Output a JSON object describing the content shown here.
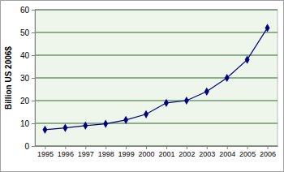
{
  "chart_data": {
    "type": "line",
    "y_label": "Billion US 2006$",
    "categories": [
      "1995",
      "1996",
      "1997",
      "1998",
      "1999",
      "2000",
      "2001",
      "2002",
      "2003",
      "2004",
      "2005",
      "2006"
    ],
    "values": [
      7.2,
      8,
      9,
      9.8,
      11.5,
      14,
      19,
      20,
      24,
      30,
      38,
      52
    ],
    "color": "#000080",
    "marker": "diamond",
    "line_style": "solid",
    "ylim": [
      0,
      60
    ],
    "yticks": [
      0,
      10,
      20,
      30,
      40,
      50,
      60
    ],
    "grid": true
  }
}
